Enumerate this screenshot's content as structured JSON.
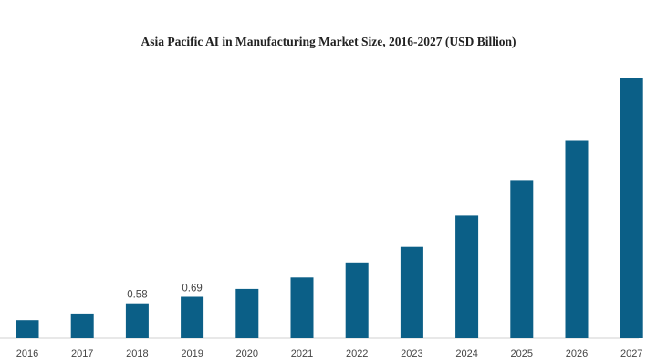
{
  "chart_data": {
    "type": "bar",
    "title": "Asia Pacific AI in Manufacturing Market Size, 2016-2027 (USD Billion)",
    "categories": [
      "2016",
      "2017",
      "2018",
      "2019",
      "2020",
      "2021",
      "2022",
      "2023",
      "2024",
      "2025",
      "2026",
      "2027"
    ],
    "values": [
      0.3,
      0.41,
      0.58,
      0.69,
      0.82,
      1.01,
      1.26,
      1.52,
      2.04,
      2.63,
      3.28,
      4.32
    ],
    "data_labels": [
      "",
      "",
      "0.58",
      "0.69",
      "",
      "",
      "",
      "",
      "",
      "",
      "",
      ""
    ],
    "xlabel": "",
    "ylabel": "",
    "ylim": [
      0,
      4.6
    ],
    "grid": false,
    "bar_color": "#0b5f87"
  }
}
